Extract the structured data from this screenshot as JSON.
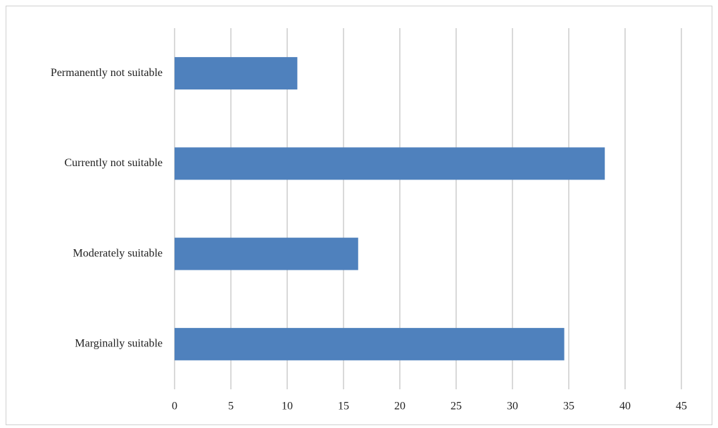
{
  "chart_data": {
    "type": "hbar",
    "categories": [
      "Permanently not suitable",
      "Currently not suitable",
      "Moderately suitable",
      "Marginally suitable"
    ],
    "values": [
      10.9,
      38.2,
      16.3,
      34.6
    ],
    "color": "#4f81bd",
    "xlim": [
      0,
      45
    ],
    "xticks": [
      0,
      5,
      10,
      15,
      20,
      25,
      30,
      35,
      40,
      45
    ],
    "grid": true
  }
}
